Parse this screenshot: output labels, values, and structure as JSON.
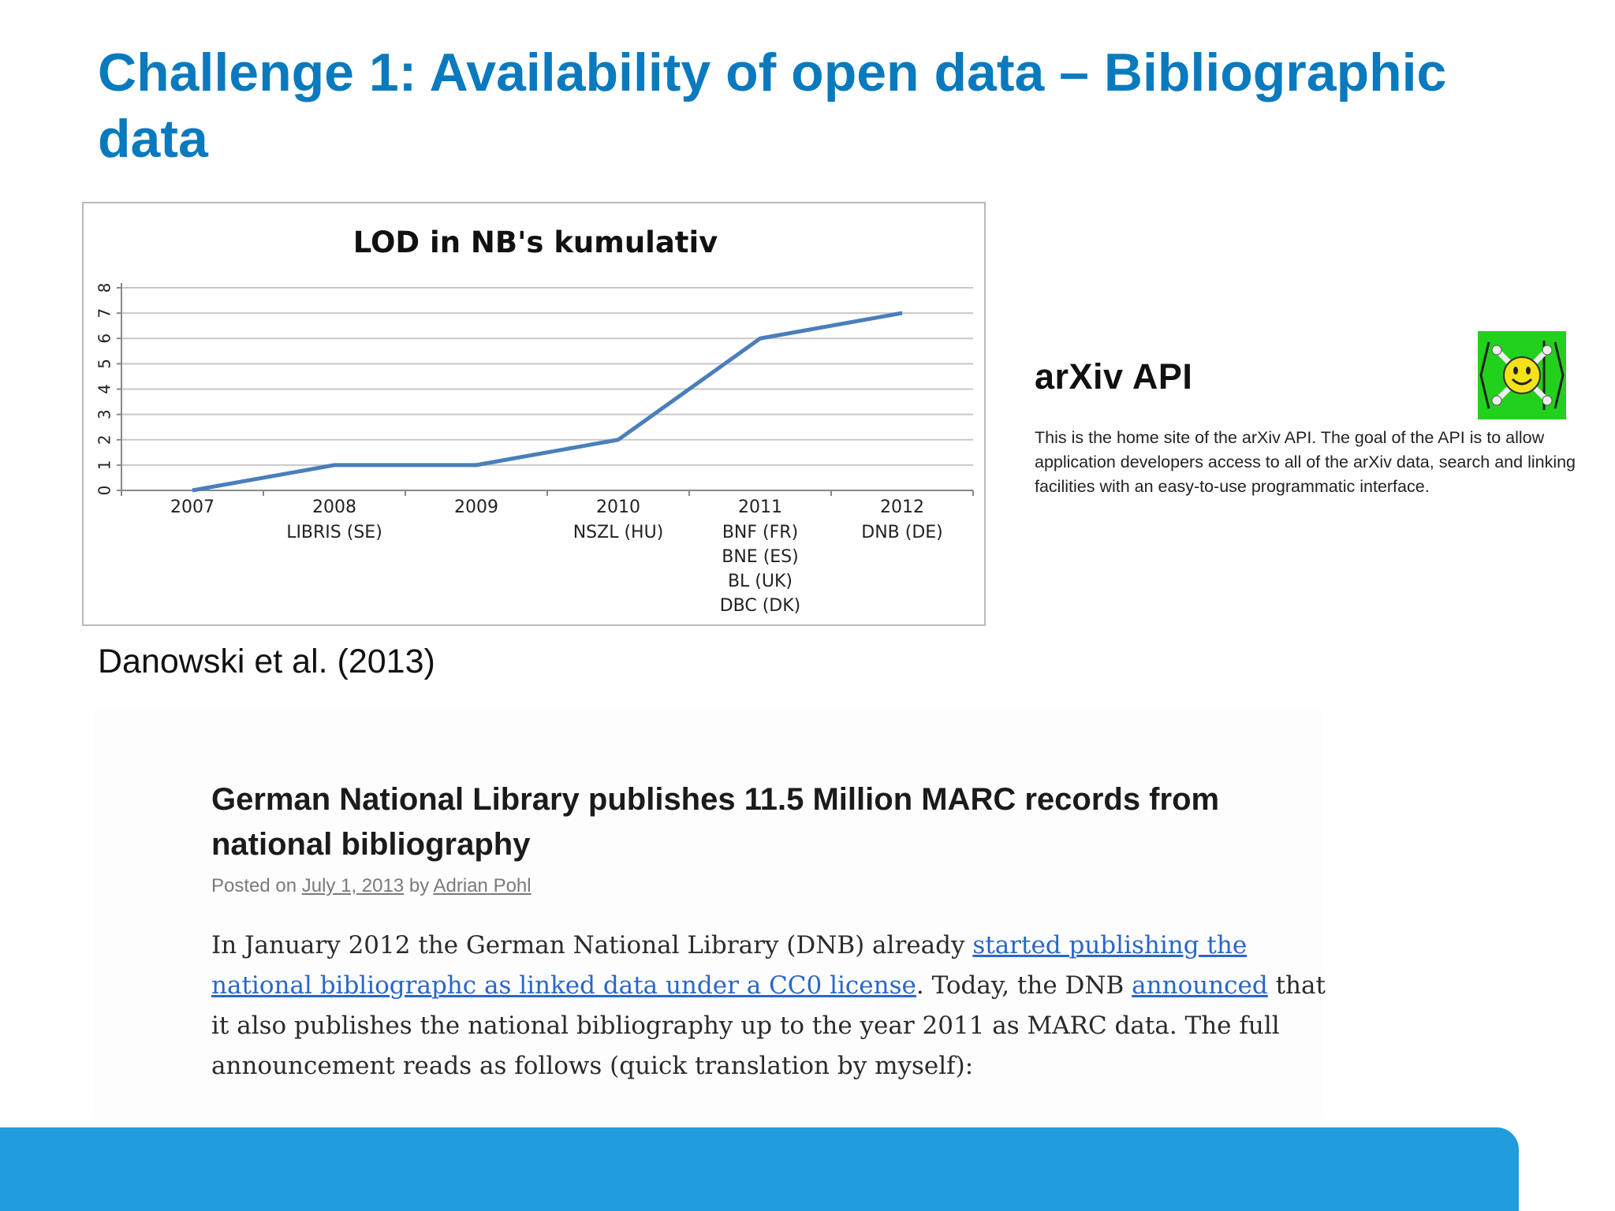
{
  "slide": {
    "title": "Challenge 1: Availability of open data – Bibliographic data",
    "citation": "Danowski et al. (2013)"
  },
  "chart_data": {
    "type": "line",
    "title": "LOD in NB's kumulativ",
    "categories": [
      "2007",
      "2008",
      "2009",
      "2010",
      "2011",
      "2012"
    ],
    "category_sublabels": [
      [],
      [
        "LIBRIS (SE)"
      ],
      [],
      [
        "NSZL (HU)"
      ],
      [
        "BNF (FR)",
        "BNE (ES)",
        "BL (UK)",
        "DBC (DK)"
      ],
      [
        "DNB (DE)"
      ]
    ],
    "values": [
      0,
      1,
      1,
      2,
      6,
      7
    ],
    "ylim": [
      0,
      8
    ],
    "yticks": [
      "0",
      "1",
      "2",
      "3",
      "4",
      "5",
      "6",
      "7",
      "8"
    ],
    "grid": true,
    "line_color": "#4a7ebb"
  },
  "arxiv": {
    "title": "arXiv API",
    "logo_icon": "smiley-crossbones-icon",
    "logo_color": "#22d11c",
    "description": "This is the home site of the arXiv API. The goal of the API is to allow application developers access to all of the arXiv data, search and linking facilities with an easy-to-use programmatic interface."
  },
  "blog": {
    "title": "German National Library publishes 11.5 Million MARC records from national bibliography",
    "meta_posted": "Posted on ",
    "meta_date": "July 1, 2013",
    "meta_by": " by ",
    "meta_author": "Adrian Pohl",
    "body_part1": "In January 2012 the German National Library (DNB) already ",
    "body_link1": "started publishing the national bibliographc as linked data under a CC0 license",
    "body_part2": ". Today, the DNB ",
    "body_link2": "announced",
    "body_part3": " that it also publishes the national bibliography up to the year 2011 as MARC data. The full announcement reads as follows (quick translation by myself):"
  },
  "footer": {
    "bar_color": "#219cdd"
  }
}
